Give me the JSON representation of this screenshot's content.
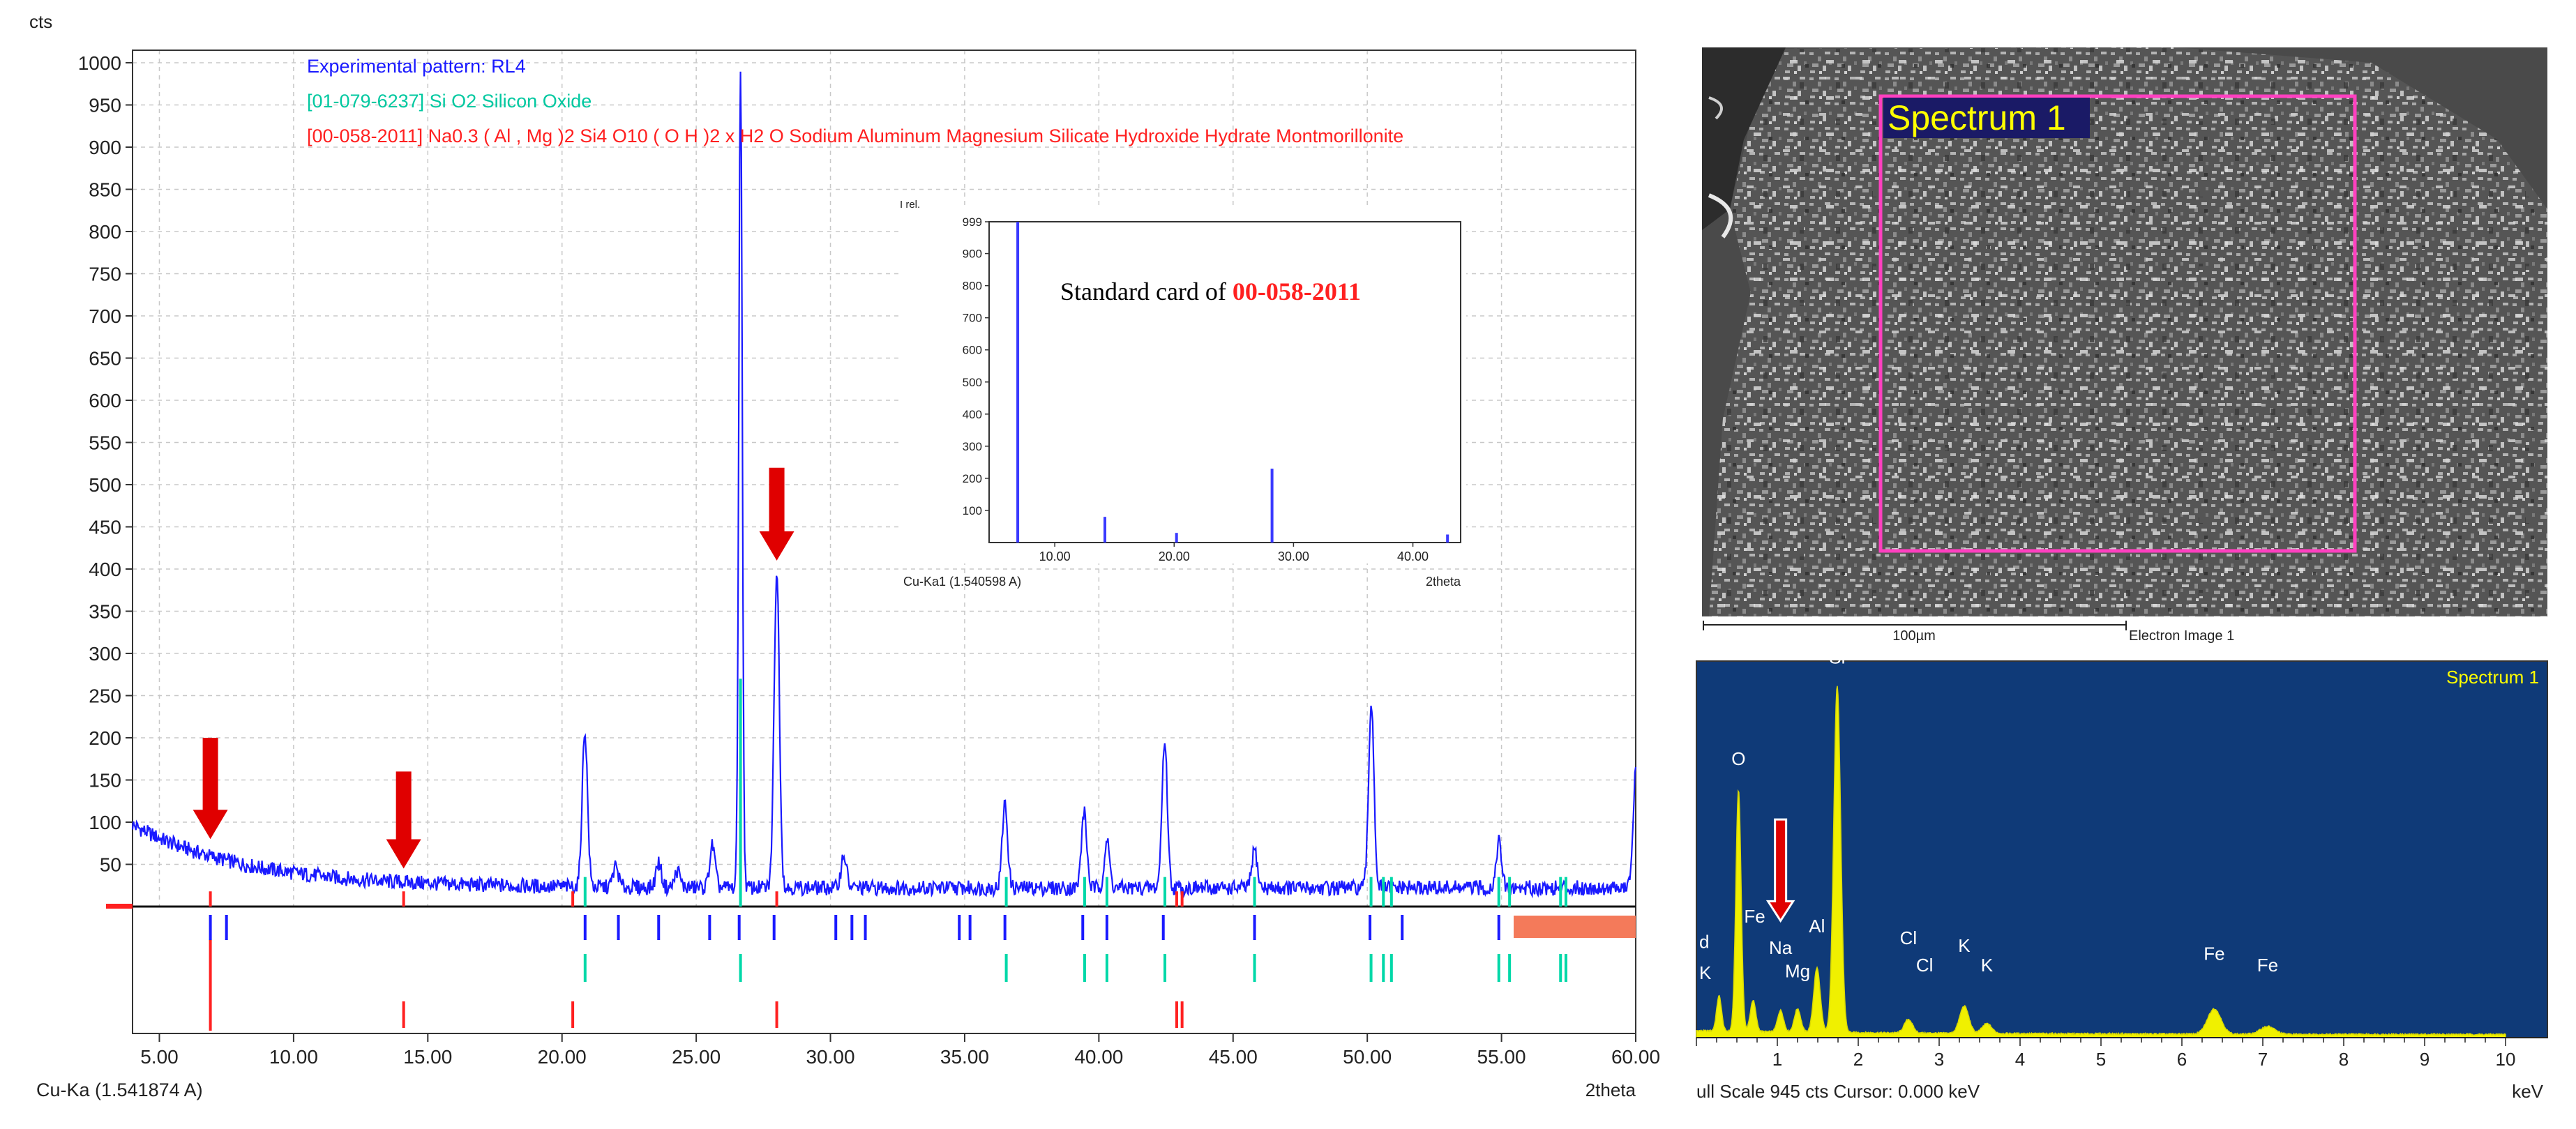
{
  "colors": {
    "experimental": "#1a1aff",
    "sio2": "#00d8a8",
    "montmorillonite": "#ff2020",
    "arrow": "#e00000",
    "eds_bg": "#0f3a78",
    "eds_fill": "#f0f000",
    "eds_text": "#ffff00",
    "spectrum_box": "#ff40c0",
    "orange_bar": "#f47a5a"
  },
  "chart_data": [
    {
      "type": "line",
      "ylabel": "cts",
      "xlabel": "2theta",
      "footer": "Cu-Ka (1.541874 A)",
      "xlim": [
        4,
        60
      ],
      "ylim": [
        0,
        1000
      ],
      "x_ticks": [
        "5.00",
        "10.00",
        "15.00",
        "20.00",
        "25.00",
        "30.00",
        "35.00",
        "40.00",
        "45.00",
        "50.00",
        "55.00",
        "60.00"
      ],
      "x_tick_values": [
        5,
        10,
        15,
        20,
        25,
        30,
        35,
        40,
        45,
        50,
        55,
        60
      ],
      "y_ticks": [
        "50",
        "100",
        "150",
        "200",
        "250",
        "300",
        "350",
        "400",
        "450",
        "500",
        "550",
        "600",
        "650",
        "700",
        "750",
        "800",
        "850",
        "900",
        "950",
        "1000"
      ],
      "y_tick_values": [
        50,
        100,
        150,
        200,
        250,
        300,
        350,
        400,
        450,
        500,
        550,
        600,
        650,
        700,
        750,
        800,
        850,
        900,
        950,
        1000
      ],
      "grid": true,
      "legend": [
        {
          "name": "Experimental pattern: RL4",
          "color": "#1a1aff"
        },
        {
          "name": "[01-079-6237] Si O2 Silicon Oxide",
          "color": "#00d8a8"
        },
        {
          "name": "[00-058-2011] Na0.3 ( Al , Mg )2 Si4 O10 ( O H )2 x H2 O Sodium Aluminum Magnesium Silicate Hydroxide Hydrate Montmorillonite",
          "color": "#ff2020"
        }
      ],
      "peaks": [
        {
          "x": 20.85,
          "y": 210
        },
        {
          "x": 22.0,
          "y": 50
        },
        {
          "x": 23.6,
          "y": 55
        },
        {
          "x": 24.3,
          "y": 45
        },
        {
          "x": 25.6,
          "y": 75
        },
        {
          "x": 26.65,
          "y": 1000
        },
        {
          "x": 28.0,
          "y": 400
        },
        {
          "x": 30.5,
          "y": 65
        },
        {
          "x": 36.5,
          "y": 125
        },
        {
          "x": 39.45,
          "y": 115
        },
        {
          "x": 40.3,
          "y": 80
        },
        {
          "x": 42.45,
          "y": 200
        },
        {
          "x": 45.8,
          "y": 70
        },
        {
          "x": 50.15,
          "y": 245
        },
        {
          "x": 54.9,
          "y": 80
        },
        {
          "x": 60.0,
          "y": 160
        }
      ],
      "arrow_markers": [
        {
          "x": 6.9,
          "y_top": 200,
          "y_tip": 80
        },
        {
          "x": 14.1,
          "y_top": 160,
          "y_tip": 45
        },
        {
          "x": 28.0,
          "y_top": 520,
          "y_tip": 410
        }
      ],
      "sio2_ticks_x": [
        20.86,
        26.65,
        36.55,
        39.47,
        40.3,
        42.46,
        45.8,
        50.14,
        50.6,
        50.9,
        54.9,
        55.3,
        57.2,
        57.4
      ],
      "montmorillonite_ticks_x": [
        6.9,
        14.1,
        20.4,
        28.0,
        42.9,
        43.1
      ]
    },
    {
      "type": "bar",
      "title_prefix": "Standard card of ",
      "title_code": "00-058-2011",
      "ylabel": "I rel.",
      "xlabel": "2theta",
      "footer": "Cu-Ka1 (1.540598 A)",
      "xlim": [
        4.5,
        44
      ],
      "ylim": [
        0,
        999
      ],
      "x_ticks": [
        "10.00",
        "20.00",
        "30.00",
        "40.00"
      ],
      "x_tick_values": [
        10,
        20,
        30,
        40
      ],
      "y_ticks": [
        "100",
        "200",
        "300",
        "400",
        "500",
        "600",
        "700",
        "800",
        "900",
        "999"
      ],
      "y_tick_values": [
        100,
        200,
        300,
        400,
        500,
        600,
        700,
        800,
        900,
        999
      ],
      "x": [
        6.9,
        14.2,
        20.2,
        28.2,
        42.9
      ],
      "values": [
        999,
        80,
        30,
        230,
        25
      ]
    },
    {
      "type": "area",
      "title": "Spectrum 1",
      "xlabel": "keV",
      "footer": "ull Scale 945 cts  Cursor: 0.000 keV",
      "xlim": [
        0,
        10
      ],
      "ylim": [
        0,
        945
      ],
      "x_ticks": [
        "1",
        "2",
        "3",
        "4",
        "5",
        "6",
        "7",
        "8",
        "9",
        "10"
      ],
      "x_tick_values": [
        1,
        2,
        3,
        4,
        5,
        6,
        7,
        8,
        9,
        10
      ],
      "peaks": [
        {
          "x": 0.28,
          "y": 90
        },
        {
          "x": 0.52,
          "y": 620
        },
        {
          "x": 0.7,
          "y": 80
        },
        {
          "x": 1.04,
          "y": 55
        },
        {
          "x": 1.25,
          "y": 60
        },
        {
          "x": 1.49,
          "y": 165
        },
        {
          "x": 1.74,
          "y": 890
        },
        {
          "x": 2.62,
          "y": 35
        },
        {
          "x": 3.31,
          "y": 70
        },
        {
          "x": 3.59,
          "y": 25
        },
        {
          "x": 6.4,
          "y": 65
        },
        {
          "x": 7.06,
          "y": 20
        }
      ],
      "element_labels": [
        {
          "text": "O",
          "x": 0.52,
          "y": 700
        },
        {
          "text": "Si",
          "x": 1.74,
          "y": 960
        },
        {
          "text": "Fe",
          "x": 0.72,
          "y": 295
        },
        {
          "text": "Na",
          "x": 1.04,
          "y": 215
        },
        {
          "text": "Mg",
          "x": 1.25,
          "y": 155
        },
        {
          "text": "Al",
          "x": 1.49,
          "y": 270
        },
        {
          "text": "Cl",
          "x": 2.62,
          "y": 240
        },
        {
          "text": "Cl",
          "x": 2.82,
          "y": 170
        },
        {
          "text": "K",
          "x": 3.31,
          "y": 220
        },
        {
          "text": "K",
          "x": 3.59,
          "y": 170
        },
        {
          "text": "Fe",
          "x": 6.4,
          "y": 200
        },
        {
          "text": "Fe",
          "x": 7.06,
          "y": 170
        }
      ],
      "edge_labels": [
        {
          "text": "d",
          "x": 0.0,
          "y": 230
        },
        {
          "text": "K",
          "x": 0.0,
          "y": 150
        }
      ],
      "arrow_marker": {
        "x": 1.04,
        "y_top": 560,
        "y_tip": 300
      }
    }
  ],
  "sem": {
    "label": "Spectrum 1",
    "scale": "100µm",
    "caption": "Electron Image 1"
  }
}
